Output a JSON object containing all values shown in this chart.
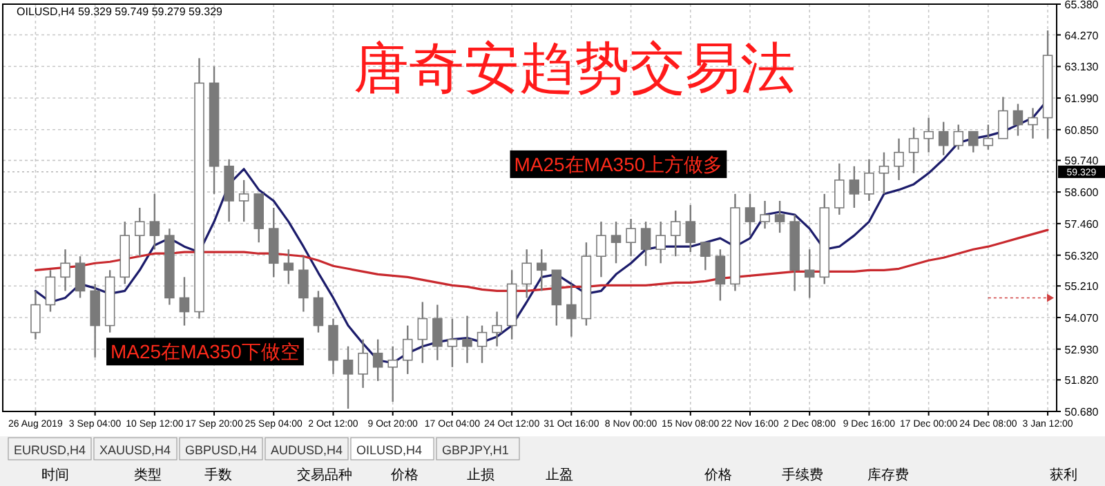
{
  "chart_data": {
    "type": "candlestick",
    "title": "唐奇安趋势交易法",
    "categories": [
      "26 Aug 2019",
      null,
      null,
      null,
      "3 Sep 04:00",
      null,
      null,
      null,
      "10 Sep 12:00",
      null,
      null,
      null,
      "17 Sep 20:00",
      null,
      null,
      null,
      "25 Sep 04:00",
      null,
      null,
      null,
      "2 Oct 12:00",
      null,
      null,
      null,
      "9 Oct 20:00",
      null,
      null,
      null,
      "17 Oct 04:00",
      null,
      null,
      null,
      "24 Oct 12:00",
      null,
      null,
      null,
      "31 Oct 16:00",
      null,
      null,
      null,
      "8 Nov 00:00",
      null,
      null,
      null,
      "15 Nov 08:00",
      null,
      null,
      null,
      "22 Nov 16:00",
      null,
      null,
      null,
      "2 Dec 08:00",
      null,
      null,
      null,
      "9 Dec 16:00",
      null,
      null,
      null,
      "17 Dec 00:00",
      null,
      null,
      null,
      "24 Dec 08:00",
      null,
      null,
      null,
      "3 Jan 12:00"
    ],
    "series": [
      {
        "type": "candlestick",
        "color": "#7a7a7a",
        "ohlc": [
          [
            53.53,
            55.03,
            53.28,
            54.53
          ],
          [
            54.53,
            55.78,
            54.28,
            55.53
          ],
          [
            55.53,
            56.53,
            55.03,
            56.03
          ],
          [
            56.03,
            56.28,
            54.78,
            55.03
          ],
          [
            55.03,
            55.28,
            52.63,
            53.78
          ],
          [
            53.78,
            55.78,
            53.53,
            55.53
          ],
          [
            55.53,
            57.53,
            55.28,
            57.03
          ],
          [
            57.03,
            58.03,
            56.28,
            57.53
          ],
          [
            57.53,
            58.53,
            56.53,
            57.03
          ],
          [
            57.03,
            57.28,
            54.53,
            54.78
          ],
          [
            54.78,
            55.53,
            53.78,
            54.28
          ],
          [
            54.28,
            63.43,
            54.03,
            62.53
          ],
          [
            62.53,
            63.13,
            58.53,
            59.53
          ],
          [
            59.53,
            59.78,
            57.53,
            58.28
          ],
          [
            58.28,
            59.03,
            57.53,
            58.53
          ],
          [
            58.53,
            58.53,
            56.78,
            57.28
          ],
          [
            57.28,
            58.03,
            55.53,
            56.03
          ],
          [
            56.03,
            56.53,
            55.28,
            55.78
          ],
          [
            55.78,
            56.28,
            54.28,
            54.78
          ],
          [
            54.78,
            55.03,
            53.53,
            53.78
          ],
          [
            53.78,
            54.03,
            52.03,
            52.53
          ],
          [
            52.53,
            53.03,
            50.78,
            52.03
          ],
          [
            52.03,
            53.28,
            51.53,
            52.78
          ],
          [
            52.78,
            53.28,
            51.78,
            52.28
          ],
          [
            52.28,
            53.03,
            51.03,
            52.53
          ],
          [
            52.53,
            53.78,
            52.03,
            53.28
          ],
          [
            53.28,
            54.63,
            52.43,
            54.03
          ],
          [
            54.03,
            54.53,
            52.53,
            53.03
          ],
          [
            53.03,
            54.03,
            52.28,
            53.28
          ],
          [
            53.28,
            54.13,
            52.43,
            53.03
          ],
          [
            53.03,
            53.78,
            52.43,
            53.53
          ],
          [
            53.53,
            54.28,
            53.03,
            53.78
          ],
          [
            53.78,
            55.78,
            53.28,
            55.28
          ],
          [
            55.28,
            56.53,
            54.78,
            56.03
          ],
          [
            56.03,
            56.53,
            55.03,
            55.78
          ],
          [
            55.78,
            55.78,
            53.78,
            54.53
          ],
          [
            54.53,
            55.28,
            53.38,
            54.03
          ],
          [
            54.03,
            56.78,
            53.78,
            56.28
          ],
          [
            56.28,
            57.53,
            55.53,
            57.03
          ],
          [
            57.03,
            57.53,
            56.03,
            56.78
          ],
          [
            56.78,
            57.63,
            56.28,
            57.28
          ],
          [
            57.28,
            57.53,
            55.93,
            56.53
          ],
          [
            56.53,
            57.53,
            56.03,
            57.03
          ],
          [
            57.03,
            57.93,
            56.28,
            57.53
          ],
          [
            57.53,
            58.13,
            56.43,
            56.78
          ],
          [
            56.78,
            56.78,
            55.78,
            56.28
          ],
          [
            56.28,
            56.53,
            54.68,
            55.28
          ],
          [
            55.28,
            58.53,
            55.03,
            58.03
          ],
          [
            58.03,
            58.53,
            57.03,
            57.53
          ],
          [
            57.53,
            58.28,
            57.28,
            57.78
          ],
          [
            57.78,
            58.28,
            57.13,
            57.53
          ],
          [
            57.53,
            57.78,
            55.03,
            55.78
          ],
          [
            55.78,
            56.53,
            54.78,
            55.53
          ],
          [
            55.53,
            58.53,
            55.28,
            58.03
          ],
          [
            58.03,
            59.63,
            57.78,
            59.03
          ],
          [
            59.03,
            59.53,
            58.03,
            58.53
          ],
          [
            58.53,
            59.78,
            58.28,
            59.28
          ],
          [
            59.28,
            60.03,
            58.53,
            59.53
          ],
          [
            59.53,
            60.53,
            59.03,
            60.03
          ],
          [
            60.03,
            60.93,
            59.28,
            60.53
          ],
          [
            60.53,
            61.28,
            60.03,
            60.78
          ],
          [
            60.78,
            61.13,
            59.93,
            60.28
          ],
          [
            60.28,
            61.03,
            60.13,
            60.78
          ],
          [
            60.78,
            60.78,
            60.03,
            60.28
          ],
          [
            60.28,
            61.03,
            60.13,
            60.53
          ],
          [
            60.53,
            62.03,
            60.53,
            61.53
          ],
          [
            61.53,
            61.78,
            60.63,
            61.03
          ],
          [
            61.03,
            61.63,
            60.53,
            61.28
          ],
          [
            61.28,
            64.43,
            60.53,
            63.53
          ]
        ]
      },
      {
        "type": "line",
        "color": "#1c1c6b",
        "values": [
          55.03,
          54.63,
          54.78,
          55.28,
          55.13,
          54.93,
          55.03,
          55.78,
          56.68,
          56.93,
          56.63,
          56.43,
          57.53,
          58.88,
          59.43,
          58.68,
          58.28,
          57.53,
          56.63,
          55.68,
          54.78,
          53.78,
          53.13,
          52.53,
          52.43,
          52.78,
          53.03,
          53.18,
          53.28,
          53.33,
          53.18,
          53.38,
          53.78,
          54.63,
          55.53,
          55.63,
          55.28,
          54.93,
          55.03,
          55.63,
          56.03,
          56.53,
          56.63,
          56.63,
          56.63,
          56.78,
          56.93,
          56.63,
          56.93,
          57.78,
          57.88,
          57.78,
          57.28,
          56.53,
          56.63,
          57.03,
          57.53,
          58.53,
          58.68,
          58.88,
          59.28,
          59.78,
          60.38,
          60.53,
          60.63,
          60.78,
          61.03,
          61.28,
          61.93
        ]
      },
      {
        "type": "line",
        "color": "#c8282d",
        "values": [
          55.78,
          55.83,
          55.88,
          55.93,
          56.03,
          56.08,
          56.18,
          56.28,
          56.38,
          56.38,
          56.43,
          56.43,
          56.43,
          56.43,
          56.43,
          56.38,
          56.38,
          56.33,
          56.28,
          56.13,
          55.93,
          55.83,
          55.73,
          55.63,
          55.58,
          55.53,
          55.43,
          55.33,
          55.23,
          55.18,
          55.08,
          55.03,
          55.03,
          55.03,
          55.08,
          55.13,
          55.18,
          55.18,
          55.23,
          55.23,
          55.23,
          55.23,
          55.28,
          55.33,
          55.33,
          55.38,
          55.48,
          55.53,
          55.58,
          55.63,
          55.68,
          55.73,
          55.73,
          55.73,
          55.73,
          55.73,
          55.78,
          55.78,
          55.83,
          55.98,
          56.13,
          56.23,
          56.38,
          56.53,
          56.63,
          56.78,
          56.93,
          57.08,
          57.23
        ]
      }
    ],
    "ylim": [
      50.68,
      65.38
    ],
    "yticks": [
      {
        "value": 65.38,
        "label": "65.380"
      },
      {
        "value": 64.27,
        "label": "64.270"
      },
      {
        "value": 63.13,
        "label": "63.130"
      },
      {
        "value": 61.99,
        "label": "61.990"
      },
      {
        "value": 60.85,
        "label": "60.850"
      },
      {
        "value": 59.74,
        "label": "59.740"
      },
      {
        "value": 58.6,
        "label": "58.600"
      },
      {
        "value": 57.46,
        "label": "57.460"
      },
      {
        "value": 56.32,
        "label": "56.320"
      },
      {
        "value": 55.21,
        "label": "55.210"
      },
      {
        "value": 54.07,
        "label": "54.070"
      },
      {
        "value": 52.93,
        "label": "52.930"
      },
      {
        "value": 51.82,
        "label": "51.820"
      },
      {
        "value": 50.68,
        "label": "50.680"
      }
    ],
    "grid": true,
    "ref_lines": [
      {
        "axis": "y",
        "value": 59.329,
        "label": "59.329",
        "color": "#000000",
        "line_style": "dotted"
      }
    ],
    "annotations": [
      "OILUSD,H4  59.329 59.749 59.279 59.329",
      "MA25在MA350下做空",
      "MA25在MA350上方做多",
      "EURUSD,H4",
      "XAUUSD,H4",
      "GBPUSD,H4",
      "AUDUSD,H4",
      "OILUSD,H4",
      "GBPJPY,H1",
      "时间",
      "类型",
      "手数",
      "交易品种",
      "价格",
      "止损",
      "止盈",
      "价格",
      "手续费",
      "库存费",
      "获利"
    ]
  }
}
